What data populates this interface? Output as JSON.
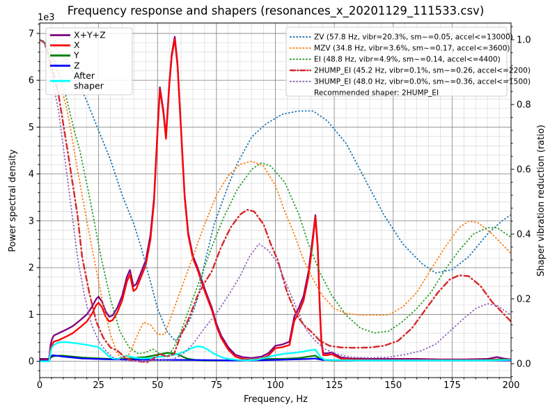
{
  "chart_data": {
    "type": "line",
    "title": "Frequency response and shapers (resonances_x_20201129_111533.csv)",
    "xlabel": "Frequency, Hz",
    "ylabel_left": "Power spectral density",
    "ylabel_right": "Shaper vibration reduction (ratio)",
    "y_left_offset": "1e3",
    "y_left_units": "1e3",
    "xlim": [
      0,
      200
    ],
    "ylim_left_1e3": [
      -0.36,
      7.21
    ],
    "ylim_right": [
      -0.043,
      1.052
    ],
    "x_major_ticks": [
      0,
      25,
      50,
      75,
      100,
      125,
      150,
      175,
      200
    ],
    "x_minor_step": 5,
    "y_left_ticks": [
      0,
      1,
      2,
      3,
      4,
      5,
      6,
      7
    ],
    "y_left_minor_step": 0.2,
    "y_right_ticks": [
      "0.0",
      "0.2",
      "0.4",
      "0.6",
      "0.8",
      "1.0"
    ],
    "y_right_minor_step": 0.04,
    "grid": {
      "major": true,
      "minor": true,
      "major_color": "#8c8c8c",
      "minor_color": "#d9d9d9"
    },
    "legend_note": "Recommended shaper: 2HUMP_EI",
    "recommended_shaper": "2HUMP_EI",
    "series": [
      {
        "name": "X+Y+Z",
        "legend": "X+Y+Z",
        "group": "psd",
        "axis": "left",
        "color": "#800080",
        "linestyle": "solid",
        "x": [
          0,
          4,
          4.6,
          5.2,
          6,
          8,
          11,
          14,
          17,
          20,
          22,
          24,
          25,
          26.5,
          28,
          29.5,
          31,
          33,
          35,
          37,
          38.3,
          39.8,
          41,
          43,
          45,
          47,
          48.5,
          50,
          51,
          52.5,
          53.6,
          55,
          56,
          57.3,
          58.5,
          60,
          61.5,
          63,
          65,
          67,
          70,
          73,
          75,
          77,
          80,
          83,
          86,
          90,
          94,
          97,
          100,
          103,
          106,
          108,
          110,
          112,
          114,
          115.5,
          117,
          118,
          118.8,
          119.5,
          120.3,
          122,
          124,
          126,
          128,
          132,
          140,
          150,
          160,
          170,
          180,
          190,
          194,
          197,
          200
        ],
        "y": [
          0.05,
          0.05,
          0.35,
          0.47,
          0.55,
          0.6,
          0.67,
          0.75,
          0.87,
          1.0,
          1.15,
          1.33,
          1.38,
          1.27,
          1.06,
          0.95,
          0.98,
          1.15,
          1.4,
          1.8,
          1.95,
          1.6,
          1.65,
          1.9,
          2.15,
          2.7,
          3.48,
          4.95,
          5.85,
          5.35,
          4.8,
          5.95,
          6.55,
          6.93,
          6.35,
          4.95,
          3.55,
          2.75,
          2.25,
          2.0,
          1.55,
          1.15,
          0.8,
          0.55,
          0.3,
          0.14,
          0.09,
          0.07,
          0.1,
          0.17,
          0.33,
          0.36,
          0.42,
          0.95,
          1.15,
          1.4,
          1.9,
          2.5,
          3.12,
          2.45,
          1.25,
          0.45,
          0.17,
          0.17,
          0.19,
          0.13,
          0.08,
          0.06,
          0.05,
          0.05,
          0.05,
          0.04,
          0.04,
          0.05,
          0.09,
          0.06,
          0.04
        ]
      },
      {
        "name": "X",
        "legend": "X",
        "group": "psd",
        "axis": "left",
        "color": "#ff0000",
        "linestyle": "solid",
        "x": [
          0,
          4,
          4.6,
          5.2,
          6,
          8,
          11,
          14,
          17,
          20,
          22,
          24,
          25,
          26.5,
          28,
          29.5,
          31,
          33,
          35,
          37,
          38.3,
          39.8,
          41,
          43,
          45,
          47,
          48.5,
          50,
          51,
          52.5,
          53.6,
          55,
          56,
          57.3,
          58.5,
          60,
          61.5,
          63,
          65,
          67,
          70,
          73,
          75,
          77,
          80,
          83,
          86,
          90,
          94,
          97,
          100,
          103,
          106,
          108,
          110,
          112,
          114,
          115.5,
          117,
          118,
          118.8,
          119.5,
          120.3,
          122,
          124,
          126,
          128,
          132,
          140,
          150,
          160,
          170,
          180,
          190,
          194,
          197,
          200
        ],
        "y": [
          0.02,
          0.02,
          0.25,
          0.35,
          0.42,
          0.45,
          0.52,
          0.6,
          0.72,
          0.85,
          1.0,
          1.2,
          1.25,
          1.15,
          0.95,
          0.85,
          0.88,
          1.05,
          1.3,
          1.7,
          1.85,
          1.5,
          1.55,
          1.8,
          2.05,
          2.6,
          3.4,
          4.9,
          5.8,
          5.3,
          4.75,
          5.9,
          6.5,
          6.88,
          6.3,
          4.9,
          3.5,
          2.7,
          2.2,
          1.95,
          1.5,
          1.1,
          0.75,
          0.5,
          0.25,
          0.1,
          0.05,
          0.03,
          0.06,
          0.12,
          0.28,
          0.3,
          0.35,
          0.86,
          1.05,
          1.3,
          1.8,
          2.4,
          3.08,
          2.4,
          1.2,
          0.4,
          0.13,
          0.13,
          0.15,
          0.1,
          0.05,
          0.04,
          0.03,
          0.03,
          0.03,
          0.03,
          0.03,
          0.03,
          0.04,
          0.04,
          0.03
        ]
      },
      {
        "name": "Y",
        "legend": "Y",
        "group": "psd",
        "axis": "left",
        "color": "#008000",
        "linestyle": "solid",
        "x": [
          0,
          4,
          4.6,
          6,
          8,
          10,
          14,
          18,
          22,
          26,
          30,
          34,
          38,
          42,
          45,
          48,
          51,
          54,
          57,
          59,
          61,
          63,
          66,
          70,
          75,
          80,
          85,
          90,
          94,
          98,
          102,
          106,
          110,
          114,
          117,
          119,
          121,
          125,
          135,
          150,
          170,
          185,
          193,
          196,
          200
        ],
        "y": [
          0.01,
          0.01,
          0.08,
          0.11,
          0.12,
          0.12,
          0.1,
          0.08,
          0.07,
          0.06,
          0.05,
          0.05,
          0.06,
          0.08,
          0.09,
          0.12,
          0.15,
          0.18,
          0.17,
          0.14,
          0.09,
          0.05,
          0.03,
          0.02,
          0.02,
          0.02,
          0.02,
          0.03,
          0.04,
          0.05,
          0.05,
          0.06,
          0.07,
          0.1,
          0.12,
          0.05,
          0.03,
          0.02,
          0.02,
          0.02,
          0.02,
          0.02,
          0.03,
          0.04,
          0.02
        ]
      },
      {
        "name": "Z",
        "legend": "Z",
        "group": "psd",
        "axis": "left",
        "color": "#0000ff",
        "linestyle": "solid",
        "x": [
          0,
          4,
          4.6,
          5.5,
          7,
          10,
          14,
          18,
          24,
          30,
          40,
          50,
          60,
          70,
          80,
          90,
          100,
          108,
          114,
          117,
          120,
          130,
          150,
          175,
          200
        ],
        "y": [
          0.01,
          0.01,
          0.1,
          0.13,
          0.12,
          0.1,
          0.08,
          0.06,
          0.05,
          0.04,
          0.035,
          0.03,
          0.03,
          0.025,
          0.02,
          0.02,
          0.03,
          0.04,
          0.05,
          0.06,
          0.03,
          0.02,
          0.02,
          0.02,
          0.02
        ]
      },
      {
        "name": "After shaper",
        "legend": "After\nshaper",
        "group": "psd",
        "axis": "left",
        "color": "#00ffff",
        "linestyle": "solid",
        "x": [
          0,
          4,
          4.6,
          5.2,
          6,
          8,
          10,
          13,
          16,
          19,
          22,
          25,
          27,
          29,
          31,
          33,
          35,
          37,
          39,
          41,
          44,
          47,
          50,
          53,
          56,
          59,
          62,
          65,
          67,
          69,
          71,
          74,
          77,
          80,
          84,
          88,
          92,
          96,
          100,
          104,
          108,
          112,
          115,
          117,
          119,
          121,
          125,
          135,
          150,
          170,
          190,
          200
        ],
        "y": [
          0.0,
          0.0,
          0.2,
          0.3,
          0.35,
          0.4,
          0.41,
          0.4,
          0.38,
          0.36,
          0.33,
          0.3,
          0.22,
          0.12,
          0.06,
          0.05,
          0.09,
          0.12,
          0.09,
          0.07,
          0.06,
          0.07,
          0.09,
          0.11,
          0.13,
          0.16,
          0.22,
          0.29,
          0.32,
          0.31,
          0.26,
          0.16,
          0.09,
          0.05,
          0.03,
          0.02,
          0.03,
          0.08,
          0.13,
          0.16,
          0.18,
          0.21,
          0.24,
          0.25,
          0.1,
          0.03,
          0.025,
          0.02,
          0.02,
          0.02,
          0.02,
          0.03
        ]
      },
      {
        "name": "ZV",
        "legend": "ZV (57.8 Hz, vibr=20.3%, sm~=0.05, accel<=13000)",
        "group": "shaper",
        "axis": "right",
        "color": "#1f77b4",
        "linestyle": "dotted",
        "fit_hz": 57.8,
        "vibr_pct": 20.3,
        "smoothing": 0.05,
        "max_accel": 13000,
        "x": [
          0,
          2,
          5,
          10,
          15,
          20,
          25,
          30,
          35,
          40,
          43,
          46,
          50,
          54,
          57.5,
          61,
          64,
          67,
          70,
          74,
          80,
          84,
          90,
          96,
          103,
          110,
          116,
          122,
          130,
          138,
          146,
          154,
          162,
          168,
          175,
          182,
          190,
          196,
          200
        ],
        "y": [
          1.0,
          0.995,
          0.985,
          0.95,
          0.89,
          0.81,
          0.72,
          0.63,
          0.52,
          0.43,
          0.36,
          0.28,
          0.17,
          0.1,
          0.07,
          0.1,
          0.14,
          0.2,
          0.31,
          0.43,
          0.55,
          0.62,
          0.7,
          0.74,
          0.77,
          0.78,
          0.78,
          0.75,
          0.68,
          0.57,
          0.46,
          0.37,
          0.31,
          0.28,
          0.29,
          0.33,
          0.4,
          0.44,
          0.46
        ]
      },
      {
        "name": "MZV",
        "legend": "MZV (34.8 Hz, vibr=3.6%, sm~=0.17, accel<=3600)",
        "group": "shaper",
        "axis": "right",
        "color": "#ff7f0e",
        "linestyle": "dotted",
        "fit_hz": 34.8,
        "vibr_pct": 3.6,
        "smoothing": 0.17,
        "max_accel": 3600,
        "x": [
          0,
          2,
          4,
          8,
          12,
          16,
          20,
          24,
          27,
          30,
          33,
          35,
          38,
          41,
          44,
          47,
          50,
          53,
          56,
          60,
          65,
          70,
          75,
          80,
          85,
          90,
          95,
          100,
          104,
          108,
          112,
          116,
          120,
          125,
          130,
          136,
          142,
          148,
          154,
          160,
          166,
          172,
          178,
          182,
          186,
          192,
          196,
          200
        ],
        "y": [
          1.0,
          0.99,
          0.97,
          0.89,
          0.77,
          0.6,
          0.44,
          0.29,
          0.18,
          0.09,
          0.03,
          0.015,
          0.03,
          0.08,
          0.128,
          0.12,
          0.09,
          0.09,
          0.15,
          0.23,
          0.33,
          0.43,
          0.52,
          0.58,
          0.615,
          0.625,
          0.61,
          0.55,
          0.47,
          0.4,
          0.32,
          0.26,
          0.21,
          0.17,
          0.155,
          0.15,
          0.15,
          0.15,
          0.175,
          0.22,
          0.29,
          0.36,
          0.42,
          0.44,
          0.435,
          0.4,
          0.37,
          0.34
        ]
      },
      {
        "name": "EI",
        "legend": "EI (48.8 Hz, vibr=4.9%, sm~=0.14, accel<=4400)",
        "group": "shaper",
        "axis": "right",
        "color": "#2ca02c",
        "linestyle": "dotted",
        "fit_hz": 48.8,
        "vibr_pct": 4.9,
        "smoothing": 0.14,
        "max_accel": 4400,
        "x": [
          0,
          2,
          5,
          10,
          15,
          17,
          21,
          26,
          30,
          34,
          38,
          42,
          45,
          48,
          51,
          54,
          57,
          60,
          64,
          68,
          73,
          78,
          84,
          90,
          94,
          98,
          104,
          110,
          114,
          119,
          124,
          130,
          136,
          142,
          148,
          154,
          160,
          166,
          172,
          178,
          184,
          190,
          194,
          198,
          200
        ],
        "y": [
          1.0,
          0.995,
          0.96,
          0.86,
          0.71,
          0.66,
          0.52,
          0.33,
          0.2,
          0.1,
          0.05,
          0.03,
          0.035,
          0.045,
          0.03,
          0.02,
          0.05,
          0.1,
          0.18,
          0.26,
          0.36,
          0.45,
          0.54,
          0.6,
          0.62,
          0.61,
          0.56,
          0.46,
          0.37,
          0.28,
          0.21,
          0.15,
          0.11,
          0.095,
          0.1,
          0.13,
          0.17,
          0.22,
          0.29,
          0.35,
          0.4,
          0.42,
          0.42,
          0.4,
          0.39
        ]
      },
      {
        "name": "2HUMP_EI",
        "legend": "2HUMP_EI (45.2 Hz, vibr=0.1%, sm~=0.26, accel<=2200)",
        "group": "shaper",
        "axis": "right",
        "color": "#d62728",
        "linestyle": "dashdot",
        "fit_hz": 45.2,
        "vibr_pct": 0.1,
        "smoothing": 0.26,
        "max_accel": 2200,
        "x": [
          0,
          2,
          4,
          8,
          12,
          16,
          18,
          21,
          24,
          27,
          30,
          33,
          36,
          39,
          43,
          46,
          49,
          51,
          54,
          57,
          60,
          63,
          67,
          70,
          73,
          77,
          81,
          85,
          88,
          91,
          95,
          98,
          101,
          105,
          109,
          112,
          115,
          119,
          123,
          128,
          134,
          140,
          146,
          152,
          158,
          164,
          169,
          174,
          178,
          182,
          187,
          192,
          196,
          200
        ],
        "y": [
          1.0,
          0.99,
          0.95,
          0.83,
          0.65,
          0.46,
          0.33,
          0.22,
          0.13,
          0.08,
          0.05,
          0.04,
          0.02,
          0.01,
          0.006,
          0.005,
          0.02,
          0.03,
          0.022,
          0.03,
          0.09,
          0.135,
          0.21,
          0.25,
          0.285,
          0.36,
          0.42,
          0.46,
          0.475,
          0.47,
          0.43,
          0.37,
          0.32,
          0.22,
          0.15,
          0.12,
          0.1,
          0.07,
          0.055,
          0.05,
          0.049,
          0.05,
          0.055,
          0.07,
          0.11,
          0.17,
          0.22,
          0.26,
          0.273,
          0.27,
          0.24,
          0.19,
          0.16,
          0.13
        ]
      },
      {
        "name": "3HUMP_EI",
        "legend": "3HUMP_EI (48.0 Hz, vibr=0.0%, sm~=0.36, accel<=1500)",
        "group": "shaper",
        "axis": "right",
        "color": "#9467bd",
        "linestyle": "dotted",
        "fit_hz": 48.0,
        "vibr_pct": 0.0,
        "smoothing": 0.36,
        "max_accel": 1500,
        "x": [
          0,
          2,
          4,
          8,
          12,
          16,
          19,
          22,
          25,
          28,
          31,
          34,
          38,
          44,
          50,
          55,
          60,
          65,
          70,
          75,
          80,
          85,
          89,
          93,
          97,
          101,
          105,
          109,
          113,
          117,
          121,
          126,
          132,
          140,
          148,
          155,
          162,
          168,
          174,
          180,
          185,
          190,
          194,
          197,
          200
        ],
        "y": [
          1.0,
          0.99,
          0.93,
          0.78,
          0.56,
          0.33,
          0.21,
          0.12,
          0.07,
          0.04,
          0.02,
          0.012,
          0.008,
          0.006,
          0.012,
          0.01,
          0.025,
          0.06,
          0.11,
          0.155,
          0.21,
          0.27,
          0.33,
          0.37,
          0.35,
          0.31,
          0.24,
          0.17,
          0.105,
          0.07,
          0.045,
          0.03,
          0.02,
          0.018,
          0.02,
          0.028,
          0.04,
          0.06,
          0.1,
          0.14,
          0.17,
          0.185,
          0.18,
          0.165,
          0.15
        ]
      }
    ]
  }
}
